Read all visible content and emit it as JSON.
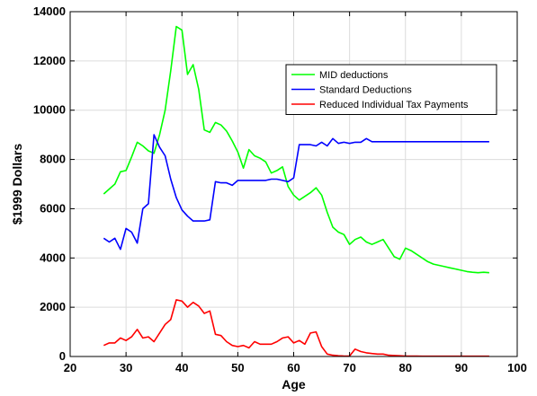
{
  "chart_data": {
    "type": "line",
    "xlabel": "Age",
    "ylabel": "$1999 Dollars",
    "xlim": [
      20,
      100
    ],
    "ylim": [
      0,
      14000
    ],
    "xticks": [
      20,
      30,
      40,
      50,
      60,
      70,
      80,
      90,
      100
    ],
    "yticks": [
      0,
      2000,
      4000,
      6000,
      8000,
      10000,
      12000,
      14000
    ],
    "grid": true,
    "legend_position": "top-right",
    "series": [
      {
        "name": "MID deductions",
        "color": "#00ff00",
        "x": [
          26,
          27,
          28,
          29,
          30,
          31,
          32,
          33,
          34,
          35,
          36,
          37,
          38,
          39,
          40,
          41,
          42,
          43,
          44,
          45,
          46,
          47,
          48,
          49,
          50,
          51,
          52,
          53,
          54,
          55,
          56,
          57,
          58,
          59,
          60,
          61,
          62,
          63,
          64,
          65,
          66,
          67,
          68,
          69,
          70,
          71,
          72,
          73,
          74,
          75,
          76,
          77,
          78,
          79,
          80,
          81,
          82,
          83,
          84,
          85,
          86,
          87,
          88,
          89,
          90,
          91,
          92,
          93,
          94,
          95
        ],
        "y": [
          6600,
          6800,
          7000,
          7500,
          7550,
          8100,
          8700,
          8550,
          8350,
          8250,
          9000,
          10000,
          11600,
          13400,
          13250,
          11450,
          11850,
          10850,
          9200,
          9100,
          9500,
          9400,
          9150,
          8750,
          8300,
          7650,
          8400,
          8150,
          8050,
          7900,
          7450,
          7550,
          7700,
          6900,
          6550,
          6350,
          6500,
          6650,
          6850,
          6550,
          5850,
          5250,
          5050,
          4950,
          4550,
          4750,
          4850,
          4650,
          4550,
          4650,
          4750,
          4400,
          4050,
          3950,
          4400,
          4300,
          4150,
          4000,
          3850,
          3750,
          3700,
          3650,
          3600,
          3550,
          3500,
          3450,
          3420,
          3400,
          3420,
          3400
        ]
      },
      {
        "name": "Standard Deductions",
        "color": "#0000ff",
        "x": [
          26,
          27,
          28,
          29,
          30,
          31,
          32,
          33,
          34,
          35,
          36,
          37,
          38,
          39,
          40,
          41,
          42,
          43,
          44,
          45,
          46,
          47,
          48,
          49,
          50,
          51,
          52,
          53,
          54,
          55,
          56,
          57,
          58,
          59,
          60,
          61,
          62,
          63,
          64,
          65,
          66,
          67,
          68,
          69,
          70,
          71,
          72,
          73,
          74,
          75,
          76,
          77,
          78,
          79,
          80,
          81,
          82,
          83,
          84,
          85,
          86,
          87,
          88,
          89,
          90,
          91,
          92,
          93,
          94,
          95
        ],
        "y": [
          4800,
          4650,
          4800,
          4350,
          5200,
          5050,
          4600,
          6000,
          6200,
          9000,
          8500,
          8150,
          7200,
          6450,
          5950,
          5700,
          5500,
          5500,
          5500,
          5550,
          7100,
          7050,
          7050,
          6950,
          7150,
          7150,
          7150,
          7150,
          7150,
          7150,
          7200,
          7200,
          7150,
          7100,
          7250,
          8600,
          8600,
          8600,
          8550,
          8700,
          8550,
          8850,
          8650,
          8700,
          8650,
          8700,
          8700,
          8850,
          8720,
          8720,
          8720,
          8720,
          8720,
          8720,
          8720,
          8720,
          8720,
          8720,
          8720,
          8720,
          8720,
          8720,
          8720,
          8720,
          8720,
          8720,
          8720,
          8720,
          8720,
          8720
        ]
      },
      {
        "name": "Reduced Individual Tax Payments",
        "color": "#ff0000",
        "x": [
          26,
          27,
          28,
          29,
          30,
          31,
          32,
          33,
          34,
          35,
          36,
          37,
          38,
          39,
          40,
          41,
          42,
          43,
          44,
          45,
          46,
          47,
          48,
          49,
          50,
          51,
          52,
          53,
          54,
          55,
          56,
          57,
          58,
          59,
          60,
          61,
          62,
          63,
          64,
          65,
          66,
          67,
          68,
          69,
          70,
          71,
          72,
          73,
          74,
          75,
          76,
          77,
          78,
          79,
          80,
          81,
          82,
          83,
          84,
          85,
          86,
          87,
          88,
          89,
          90,
          91,
          92,
          93,
          94,
          95
        ],
        "y": [
          450,
          550,
          550,
          750,
          650,
          800,
          1100,
          750,
          800,
          600,
          950,
          1300,
          1500,
          2300,
          2250,
          2000,
          2200,
          2050,
          1750,
          1850,
          900,
          850,
          600,
          450,
          400,
          450,
          350,
          600,
          500,
          500,
          500,
          600,
          750,
          800,
          550,
          650,
          500,
          950,
          1000,
          400,
          100,
          50,
          30,
          20,
          20,
          300,
          200,
          150,
          120,
          100,
          100,
          50,
          40,
          30,
          20,
          20,
          15,
          10,
          10,
          10,
          10,
          10,
          10,
          10,
          10,
          10,
          10,
          10,
          10,
          10
        ]
      }
    ]
  }
}
